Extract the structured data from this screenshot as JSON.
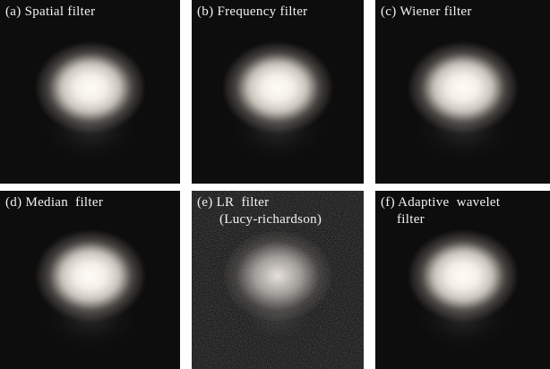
{
  "panels": [
    {
      "lines": [
        "(a) Spatial filter"
      ]
    },
    {
      "lines": [
        "(b) Frequency filter"
      ]
    },
    {
      "lines": [
        "(c) Wiener filter"
      ]
    },
    {
      "lines": [
        "(d) Median  filter"
      ]
    },
    {
      "lines": [
        "(e) LR  filter",
        "(Lucy-richardson)"
      ]
    },
    {
      "lines": [
        "(f) Adaptive  wavelet",
        "filter"
      ]
    }
  ]
}
